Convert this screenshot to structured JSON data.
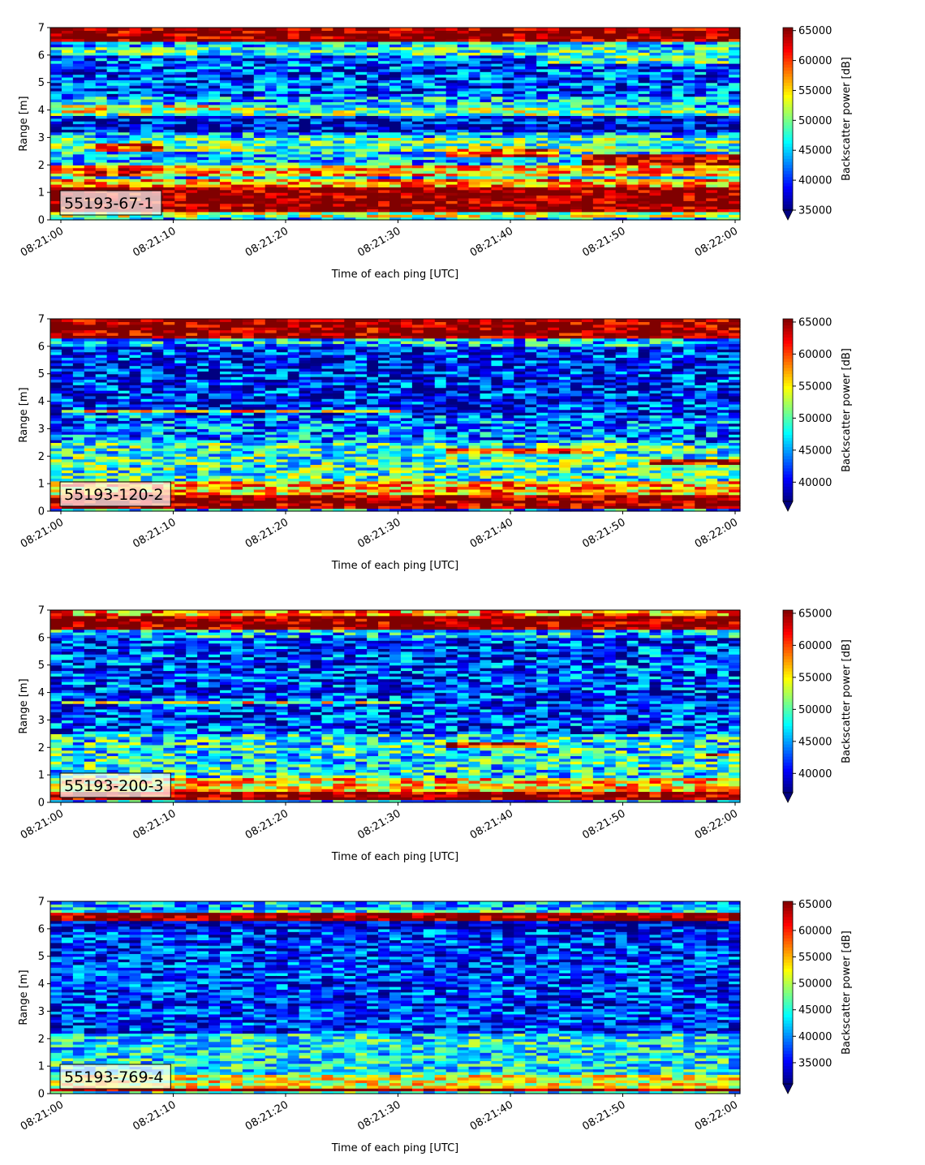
{
  "colormap": "jet",
  "chart_data": [
    {
      "type": "heatmap",
      "label": "55193-67-1",
      "xlabel": "Time of each ping [UTC]",
      "ylabel": "Range [m]",
      "ylim": [
        0,
        7
      ],
      "yticks": [
        0,
        1,
        2,
        3,
        4,
        5,
        6,
        7
      ],
      "x_start": "08:21:00",
      "x_end": "08:22:00",
      "xticks": [
        "08:21:00",
        "08:21:10",
        "08:21:20",
        "08:21:30",
        "08:21:40",
        "08:21:50",
        "08:22:00"
      ],
      "colorbar_label": "Backscatter power [dB]",
      "colorbar_range": [
        35000,
        65500
      ],
      "colorbar_ticks": [
        35000,
        40000,
        45000,
        50000,
        55000,
        60000,
        65000
      ],
      "bands": [
        {
          "y": 0.15,
          "h": 0.2,
          "value": 52000
        },
        {
          "y": 0.35,
          "h": 0.85,
          "value": 66000
        },
        {
          "y": 1.2,
          "h": 0.3,
          "value": 57000
        },
        {
          "y": 1.6,
          "h": 0.4,
          "value": 56000
        },
        {
          "y": 2.5,
          "h": 0.5,
          "value": 49000
        },
        {
          "y": 3.2,
          "h": 0.6,
          "value": 38000
        },
        {
          "y": 3.85,
          "h": 0.3,
          "value": 50000
        },
        {
          "y": 4.5,
          "h": 1.5,
          "value": 41000
        },
        {
          "y": 6.0,
          "h": 0.35,
          "value": 48000
        },
        {
          "y": 6.55,
          "h": 0.45,
          "value": 66000
        }
      ],
      "features": [
        {
          "t0": 3,
          "t1": 9,
          "y": 2.5,
          "h": 0.3,
          "value": 60000
        },
        {
          "t0": 1,
          "t1": 8,
          "y": 1.6,
          "h": 0.35,
          "value": 61000
        },
        {
          "t0": 34,
          "t1": 44,
          "y": 2.3,
          "h": 0.3,
          "value": 60000
        },
        {
          "t0": 46,
          "t1": 61,
          "y": 2.0,
          "h": 0.4,
          "value": 64000
        },
        {
          "t0": 0,
          "t1": 14,
          "y": 3.9,
          "h": 0.3,
          "value": 53000
        },
        {
          "t0": 42,
          "t1": 61,
          "y": 5.7,
          "h": 0.3,
          "value": 49000
        }
      ]
    },
    {
      "type": "heatmap",
      "label": "55193-120-2",
      "xlabel": "Time of each ping [UTC]",
      "ylabel": "Range [m]",
      "ylim": [
        0,
        7
      ],
      "yticks": [
        0,
        1,
        2,
        3,
        4,
        5,
        6,
        7
      ],
      "x_start": "08:21:00",
      "x_end": "08:22:00",
      "xticks": [
        "08:21:00",
        "08:21:10",
        "08:21:20",
        "08:21:30",
        "08:21:40",
        "08:21:50",
        "08:22:00"
      ],
      "colorbar_label": "Backscatter power [dB]",
      "colorbar_range": [
        37000,
        65500
      ],
      "colorbar_ticks": [
        40000,
        45000,
        50000,
        55000,
        60000,
        65000
      ],
      "bands": [
        {
          "y": 0.1,
          "h": 0.55,
          "value": 66000
        },
        {
          "y": 0.65,
          "h": 0.45,
          "value": 57000
        },
        {
          "y": 1.1,
          "h": 1.4,
          "value": 49000
        },
        {
          "y": 2.5,
          "h": 1.0,
          "value": 44000
        },
        {
          "y": 3.5,
          "h": 2.5,
          "value": 41000
        },
        {
          "y": 6.0,
          "h": 0.35,
          "value": 46000
        },
        {
          "y": 6.35,
          "h": 0.65,
          "value": 66000
        }
      ],
      "features": [
        {
          "t0": 0,
          "t1": 30,
          "y": 3.6,
          "h": 0.15,
          "value": 55000
        },
        {
          "t0": 34,
          "t1": 47,
          "y": 2.15,
          "h": 0.15,
          "value": 60000
        },
        {
          "t0": 52,
          "t1": 61,
          "y": 1.75,
          "h": 0.2,
          "value": 64000
        }
      ]
    },
    {
      "type": "heatmap",
      "label": "55193-200-3",
      "xlabel": "Time of each ping [UTC]",
      "ylabel": "Range [m]",
      "ylim": [
        0,
        7
      ],
      "yticks": [
        0,
        1,
        2,
        3,
        4,
        5,
        6,
        7
      ],
      "x_start": "08:21:00",
      "x_end": "08:22:00",
      "xticks": [
        "08:21:00",
        "08:21:10",
        "08:21:20",
        "08:21:30",
        "08:21:40",
        "08:21:50",
        "08:22:00"
      ],
      "colorbar_label": "Backscatter power [dB]",
      "colorbar_range": [
        37000,
        65500
      ],
      "colorbar_ticks": [
        40000,
        45000,
        50000,
        55000,
        60000,
        65000
      ],
      "bands": [
        {
          "y": 0.05,
          "h": 0.35,
          "value": 66000
        },
        {
          "y": 0.4,
          "h": 0.5,
          "value": 56000
        },
        {
          "y": 0.9,
          "h": 1.6,
          "value": 48000
        },
        {
          "y": 2.5,
          "h": 3.5,
          "value": 42000
        },
        {
          "y": 6.0,
          "h": 0.3,
          "value": 46000
        },
        {
          "y": 6.3,
          "h": 0.5,
          "value": 66000
        },
        {
          "y": 6.8,
          "h": 0.2,
          "value": 58000
        }
      ],
      "features": [
        {
          "t0": 0,
          "t1": 30,
          "y": 3.6,
          "h": 0.15,
          "value": 54000
        },
        {
          "t0": 34,
          "t1": 43,
          "y": 2.05,
          "h": 0.15,
          "value": 62000
        },
        {
          "t0": 56,
          "t1": 61,
          "y": 1.7,
          "h": 0.15,
          "value": 60000
        }
      ]
    },
    {
      "type": "heatmap",
      "label": "55193-769-4",
      "xlabel": "Time of each ping [UTC]",
      "ylabel": "Range [m]",
      "ylim": [
        0,
        7
      ],
      "yticks": [
        0,
        1,
        2,
        3,
        4,
        5,
        6,
        7
      ],
      "x_start": "08:21:00",
      "x_end": "08:22:00",
      "xticks": [
        "08:21:00",
        "08:21:10",
        "08:21:20",
        "08:21:30",
        "08:21:40",
        "08:21:50",
        "08:22:00"
      ],
      "colorbar_label": "Backscatter power [dB]",
      "colorbar_range": [
        31000,
        65500
      ],
      "colorbar_ticks": [
        35000,
        40000,
        45000,
        50000,
        55000,
        60000,
        65000
      ],
      "bands": [
        {
          "y": 0.1,
          "h": 0.15,
          "value": 66000
        },
        {
          "y": 0.25,
          "h": 0.45,
          "value": 52000
        },
        {
          "y": 0.7,
          "h": 1.5,
          "value": 44000
        },
        {
          "y": 2.2,
          "h": 3.8,
          "value": 37000
        },
        {
          "y": 6.0,
          "h": 0.35,
          "value": 33000
        },
        {
          "y": 6.35,
          "h": 0.3,
          "value": 66000
        },
        {
          "y": 6.65,
          "h": 0.35,
          "value": 42000
        }
      ],
      "features": []
    }
  ]
}
